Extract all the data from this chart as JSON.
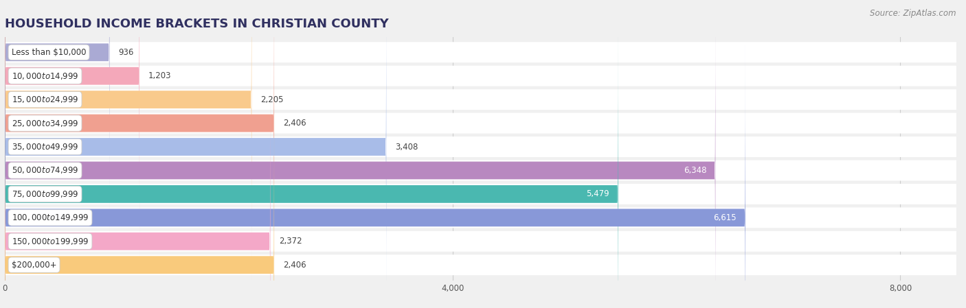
{
  "title": "HOUSEHOLD INCOME BRACKETS IN CHRISTIAN COUNTY",
  "source": "Source: ZipAtlas.com",
  "categories": [
    "Less than $10,000",
    "$10,000 to $14,999",
    "$15,000 to $24,999",
    "$25,000 to $34,999",
    "$35,000 to $49,999",
    "$50,000 to $74,999",
    "$75,000 to $99,999",
    "$100,000 to $149,999",
    "$150,000 to $199,999",
    "$200,000+"
  ],
  "values": [
    936,
    1203,
    2205,
    2406,
    3408,
    6348,
    5479,
    6615,
    2372,
    2406
  ],
  "bar_colors": [
    "#aaaad4",
    "#f4a8ba",
    "#f9ca8c",
    "#f0a090",
    "#a8bce8",
    "#b888c0",
    "#4ab8b0",
    "#8898d8",
    "#f4a8c8",
    "#f9ca7c"
  ],
  "value_label_inside": [
    false,
    false,
    false,
    false,
    false,
    true,
    true,
    true,
    false,
    false
  ],
  "xlim": [
    0,
    8500
  ],
  "xticks": [
    0,
    4000,
    8000
  ],
  "background_color": "#f0f0f0",
  "row_bg_color": "#ffffff",
  "title_fontsize": 13,
  "label_fontsize": 8.5,
  "value_fontsize": 8.5,
  "source_fontsize": 8.5,
  "title_color": "#303060",
  "label_text_color": "#333333",
  "value_text_dark": "#444444",
  "value_text_light": "#ffffff"
}
